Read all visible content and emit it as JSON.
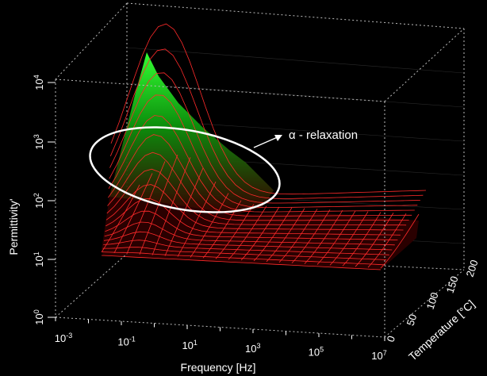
{
  "chart_data": {
    "type": "surface-3d",
    "title": "",
    "xlabel": "Frequency [Hz]",
    "ylabel": "Permittivity'",
    "zlabel": "Temperature [°C]",
    "x_scale": "log",
    "y_scale": "log",
    "x_range": [
      0.001,
      10000000
    ],
    "y_range": [
      1,
      10000
    ],
    "z_range": [
      0,
      200
    ],
    "x_ticks": [
      {
        "base": "10",
        "exp": "-3"
      },
      {
        "base": "10",
        "exp": "-1"
      },
      {
        "base": "10",
        "exp": "1"
      },
      {
        "base": "10",
        "exp": "3"
      },
      {
        "base": "10",
        "exp": "5"
      },
      {
        "base": "10",
        "exp": "7"
      }
    ],
    "y_ticks": [
      {
        "base": "10",
        "exp": "0"
      },
      {
        "base": "10",
        "exp": "1"
      },
      {
        "base": "10",
        "exp": "2"
      },
      {
        "base": "10",
        "exp": "3"
      },
      {
        "base": "10",
        "exp": "4"
      }
    ],
    "z_ticks": [
      "0",
      "50",
      "100",
      "150",
      "200"
    ],
    "annotation": "α - relaxation",
    "colors": {
      "background": "#000000",
      "mesh_line": "#ff2a2a",
      "surface_low": "#5a0000",
      "surface_high": "#33ff33",
      "box_lines": "#cccccc",
      "annotation": "#ffffff"
    },
    "surface_summary": {
      "peak_permittivity": 5000,
      "peak_at_frequency": 0.01,
      "peak_at_temperature": 200,
      "baseline_permittivity": 10,
      "high_frequency_plateau": 20
    }
  }
}
